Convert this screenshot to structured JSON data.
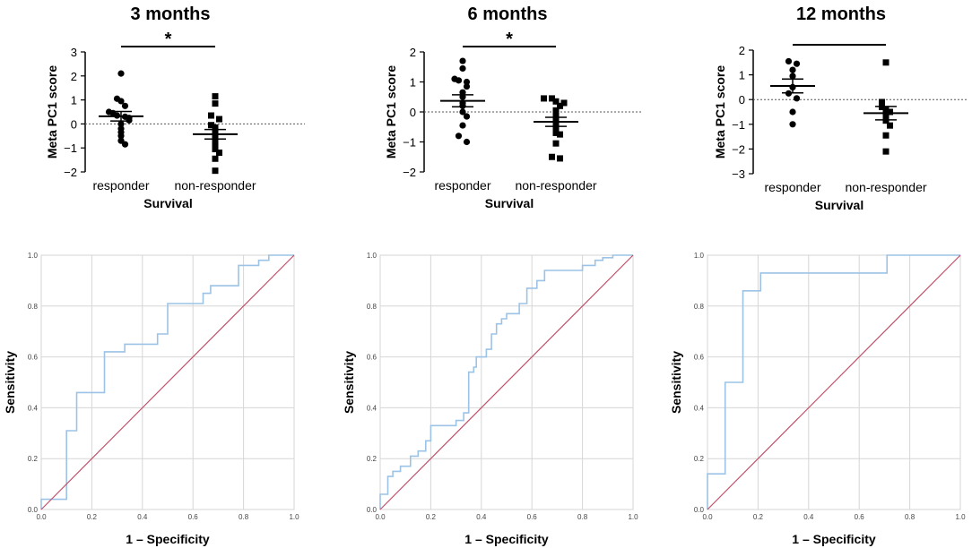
{
  "chart_data": [
    {
      "type": "scatter",
      "title": "3 months",
      "ylabel": "Meta PC1 score",
      "xlabel": "Survival",
      "categories": [
        "responder",
        "non-responder"
      ],
      "ylim": [
        -2,
        3
      ],
      "yticks": [
        -2,
        -1,
        0,
        1,
        2,
        3
      ],
      "significance": "*",
      "series": [
        {
          "name": "responder",
          "marker": "circle",
          "mean": 0.32,
          "sem": 0.2,
          "values": [
            2.1,
            1.05,
            0.95,
            0.75,
            0.5,
            0.45,
            0.35,
            0.3,
            0.25,
            0.15,
            0.0,
            -0.2,
            -0.35,
            -0.5,
            -0.7,
            -0.85
          ]
        },
        {
          "name": "non-responder",
          "marker": "square",
          "mean": -0.43,
          "sem": 0.2,
          "values": [
            1.15,
            0.85,
            0.35,
            0.2,
            -0.05,
            -0.15,
            -0.3,
            -0.45,
            -0.55,
            -0.7,
            -0.8,
            -0.95,
            -1.05,
            -1.2,
            -1.45,
            -1.95
          ]
        }
      ]
    },
    {
      "type": "scatter",
      "title": "6 months",
      "ylabel": "Meta PC1 score",
      "xlabel": "Survival",
      "categories": [
        "responder",
        "non-responder"
      ],
      "ylim": [
        -2,
        2
      ],
      "yticks": [
        -2,
        -1,
        0,
        1,
        2
      ],
      "significance": "*",
      "series": [
        {
          "name": "responder",
          "marker": "circle",
          "mean": 0.37,
          "sem": 0.2,
          "values": [
            1.7,
            1.45,
            1.1,
            1.05,
            1.0,
            0.85,
            0.65,
            0.5,
            0.3,
            0.2,
            0.0,
            -0.15,
            -0.45,
            -0.8,
            -1.0
          ]
        },
        {
          "name": "non-responder",
          "marker": "square",
          "mean": -0.33,
          "sem": 0.15,
          "values": [
            0.45,
            0.45,
            0.35,
            0.3,
            0.2,
            0.05,
            -0.05,
            -0.2,
            -0.4,
            -0.5,
            -0.7,
            -0.75,
            -1.05,
            -1.5,
            -1.55
          ]
        }
      ]
    },
    {
      "type": "scatter",
      "title": "12 months",
      "ylabel": "Meta PC1 score",
      "xlabel": "Survival",
      "categories": [
        "responder",
        "non-responder"
      ],
      "ylim": [
        -3,
        2
      ],
      "yticks": [
        -3,
        -2,
        -1,
        0,
        1,
        2
      ],
      "significance": "",
      "series": [
        {
          "name": "responder",
          "marker": "circle",
          "mean": 0.55,
          "sem": 0.28,
          "values": [
            1.55,
            1.45,
            1.2,
            0.95,
            0.5,
            0.25,
            0.05,
            -0.5,
            -1.0
          ]
        },
        {
          "name": "non-responder",
          "marker": "square",
          "mean": -0.55,
          "sem": 0.27,
          "values": [
            1.5,
            -0.1,
            -0.3,
            -0.4,
            -0.5,
            -0.7,
            -0.85,
            -1.05,
            -1.45,
            -2.1
          ]
        }
      ]
    },
    {
      "type": "line",
      "title": "",
      "xlabel": "1 – Specificity",
      "ylabel": "Sensitivity",
      "xlim": [
        0,
        1
      ],
      "ylim": [
        0,
        1
      ],
      "ticks": [
        "0.0",
        "0.2",
        "0.4",
        "0.6",
        "0.8",
        "1.0"
      ],
      "series": [
        {
          "name": "ROC",
          "color": "#9cc3e6",
          "x": [
            0,
            0,
            0.1,
            0.1,
            0.14,
            0.14,
            0.25,
            0.25,
            0.33,
            0.33,
            0.46,
            0.46,
            0.5,
            0.5,
            0.64,
            0.64,
            0.67,
            0.67,
            0.78,
            0.78,
            0.86,
            0.86,
            0.9,
            0.9,
            1.0
          ],
          "y": [
            0,
            0.04,
            0.04,
            0.31,
            0.31,
            0.46,
            0.46,
            0.62,
            0.62,
            0.65,
            0.65,
            0.69,
            0.69,
            0.81,
            0.81,
            0.85,
            0.85,
            0.88,
            0.88,
            0.96,
            0.96,
            0.98,
            0.98,
            1.0,
            1.0
          ]
        },
        {
          "name": "Reference",
          "color": "#c0506a",
          "x": [
            0,
            1
          ],
          "y": [
            0,
            1
          ]
        }
      ]
    },
    {
      "type": "line",
      "title": "",
      "xlabel": "1 – Specificity",
      "ylabel": "Sensitivity",
      "xlim": [
        0,
        1
      ],
      "ylim": [
        0,
        1
      ],
      "ticks": [
        "0.0",
        "0.2",
        "0.4",
        "0.6",
        "0.8",
        "1.0"
      ],
      "series": [
        {
          "name": "ROC",
          "color": "#9cc3e6",
          "x": [
            0,
            0,
            0.03,
            0.03,
            0.05,
            0.05,
            0.08,
            0.08,
            0.12,
            0.12,
            0.15,
            0.15,
            0.18,
            0.18,
            0.2,
            0.2,
            0.3,
            0.3,
            0.33,
            0.33,
            0.35,
            0.35,
            0.37,
            0.37,
            0.38,
            0.38,
            0.42,
            0.42,
            0.44,
            0.44,
            0.46,
            0.46,
            0.48,
            0.48,
            0.5,
            0.5,
            0.55,
            0.55,
            0.58,
            0.58,
            0.62,
            0.62,
            0.65,
            0.65,
            0.8,
            0.8,
            0.85,
            0.85,
            0.88,
            0.88,
            0.92,
            0.92,
            0.97,
            0.97,
            1.0
          ],
          "y": [
            0,
            0.06,
            0.06,
            0.13,
            0.13,
            0.15,
            0.15,
            0.17,
            0.17,
            0.21,
            0.21,
            0.23,
            0.23,
            0.27,
            0.27,
            0.33,
            0.33,
            0.35,
            0.35,
            0.38,
            0.38,
            0.54,
            0.54,
            0.56,
            0.56,
            0.6,
            0.6,
            0.63,
            0.63,
            0.69,
            0.69,
            0.73,
            0.73,
            0.75,
            0.75,
            0.77,
            0.77,
            0.81,
            0.81,
            0.87,
            0.87,
            0.9,
            0.9,
            0.94,
            0.94,
            0.96,
            0.96,
            0.98,
            0.98,
            0.99,
            0.99,
            1.0,
            1.0,
            1.0,
            1.0
          ]
        },
        {
          "name": "Reference",
          "color": "#c0506a",
          "x": [
            0,
            1
          ],
          "y": [
            0,
            1
          ]
        }
      ]
    },
    {
      "type": "line",
      "title": "",
      "xlabel": "1 – Specificity",
      "ylabel": "Sensitivity",
      "xlim": [
        0,
        1
      ],
      "ylim": [
        0,
        1
      ],
      "ticks": [
        "0.0",
        "0.2",
        "0.4",
        "0.6",
        "0.8",
        "1.0"
      ],
      "series": [
        {
          "name": "ROC",
          "color": "#9cc3e6",
          "x": [
            0,
            0,
            0.07,
            0.07,
            0.14,
            0.14,
            0.21,
            0.21,
            0.71,
            0.71,
            1.0
          ],
          "y": [
            0,
            0.14,
            0.14,
            0.5,
            0.5,
            0.86,
            0.86,
            0.93,
            0.93,
            1.0,
            1.0
          ]
        },
        {
          "name": "Reference",
          "color": "#c0506a",
          "x": [
            0,
            1
          ],
          "y": [
            0,
            1
          ]
        }
      ]
    }
  ]
}
